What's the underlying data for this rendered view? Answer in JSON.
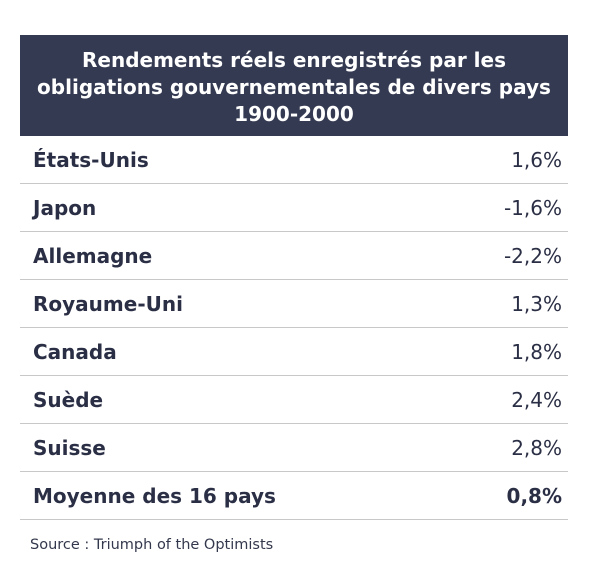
{
  "chart_data": {
    "type": "table",
    "title": "Rendements réels enregistrés par les obligations gouvernementales de divers pays 1900-2000",
    "rows": [
      {
        "country": "États-Unis",
        "value_text": "1,6%",
        "value": 1.6
      },
      {
        "country": "Japon",
        "value_text": "-1,6%",
        "value": -1.6
      },
      {
        "country": "Allemagne",
        "value_text": "-2,2%",
        "value": -2.2
      },
      {
        "country": "Royaume-Uni",
        "value_text": "1,3%",
        "value": 1.3
      },
      {
        "country": "Canada",
        "value_text": "1,8%",
        "value": 1.8
      },
      {
        "country": "Suède",
        "value_text": "2,4%",
        "value": 2.4
      },
      {
        "country": "Suisse",
        "value_text": "2,8%",
        "value": 2.8
      }
    ],
    "total": {
      "country": "Moyenne des 16 pays",
      "value_text": "0,8%",
      "value": 0.8
    },
    "source": "Source : Triumph of the Optimists"
  },
  "colors": {
    "header_bg": "#343a52",
    "text": "#2b2f45",
    "divider": "#c8c8c8"
  }
}
